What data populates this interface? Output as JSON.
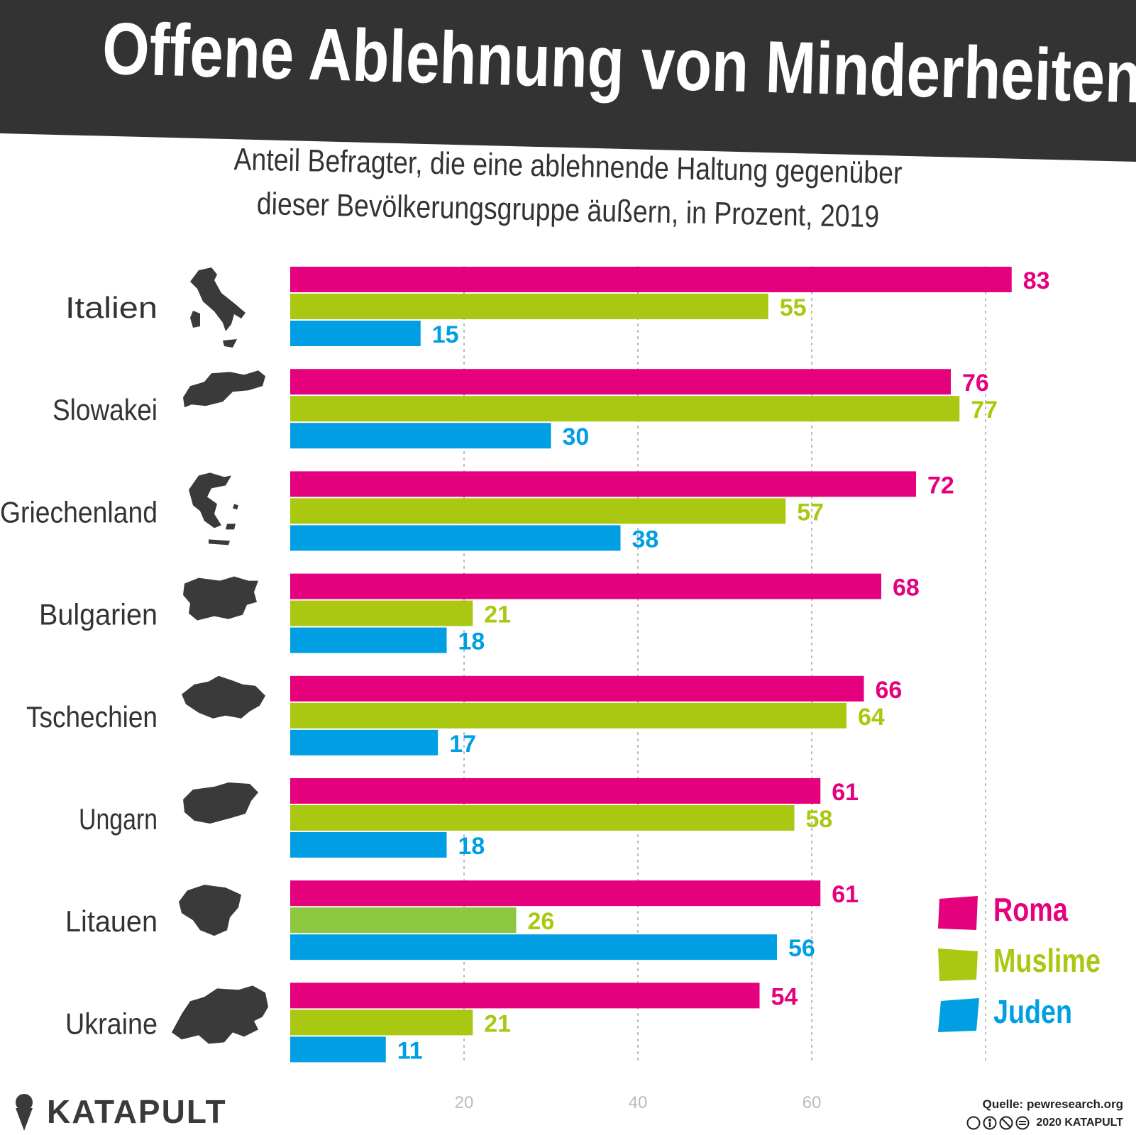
{
  "header": {
    "title": "Offene Ablehnung von Minderheiten",
    "subtitle_line1": "Anteil Befragter, die eine ablehnende Haltung gegenüber",
    "subtitle_line2": "dieser Bevölkerungsgruppe äußern, in Prozent, 2019"
  },
  "colors": {
    "roma": "#e5007d",
    "muslime": "#aac712",
    "muslime_alt": "#8dc63f",
    "juden": "#009fe3",
    "banner": "#333333",
    "map": "#3a3a3a",
    "grid": "#b5b5b5"
  },
  "chart_data": {
    "type": "bar",
    "orientation": "horizontal",
    "categories": [
      "Italien",
      "Slowakei",
      "Griechenland",
      "Bulgarien",
      "Tschechien",
      "Ungarn",
      "Litauen",
      "Ukraine"
    ],
    "series": [
      {
        "name": "Roma",
        "values": [
          83,
          76,
          72,
          68,
          66,
          61,
          61,
          54
        ]
      },
      {
        "name": "Muslime",
        "values": [
          55,
          77,
          57,
          21,
          64,
          58,
          26,
          21
        ]
      },
      {
        "name": "Juden",
        "values": [
          15,
          30,
          38,
          18,
          17,
          18,
          56,
          11
        ]
      }
    ],
    "xticks": [
      20,
      40,
      60
    ],
    "xlim": [
      0,
      83
    ],
    "grid": "vertical dotted",
    "legend_position": "bottom-right",
    "data_labels": true
  },
  "legend": {
    "items": [
      {
        "label": "Roma",
        "icon": "trapezoid-swatch"
      },
      {
        "label": "Muslime",
        "icon": "trapezoid-swatch"
      },
      {
        "label": "Juden",
        "icon": "trapezoid-swatch"
      }
    ]
  },
  "country_icons": [
    "italy-map-icon",
    "slovakia-map-icon",
    "greece-map-icon",
    "bulgaria-map-icon",
    "czechia-map-icon",
    "hungary-map-icon",
    "lithuania-map-icon",
    "ukraine-map-icon"
  ],
  "footer": {
    "brand": "KATAPULT",
    "source": "Quelle: pewresearch.org",
    "copyright": "2020 KATAPULT",
    "license_icons": "cc-by-nc-nd-icons"
  }
}
